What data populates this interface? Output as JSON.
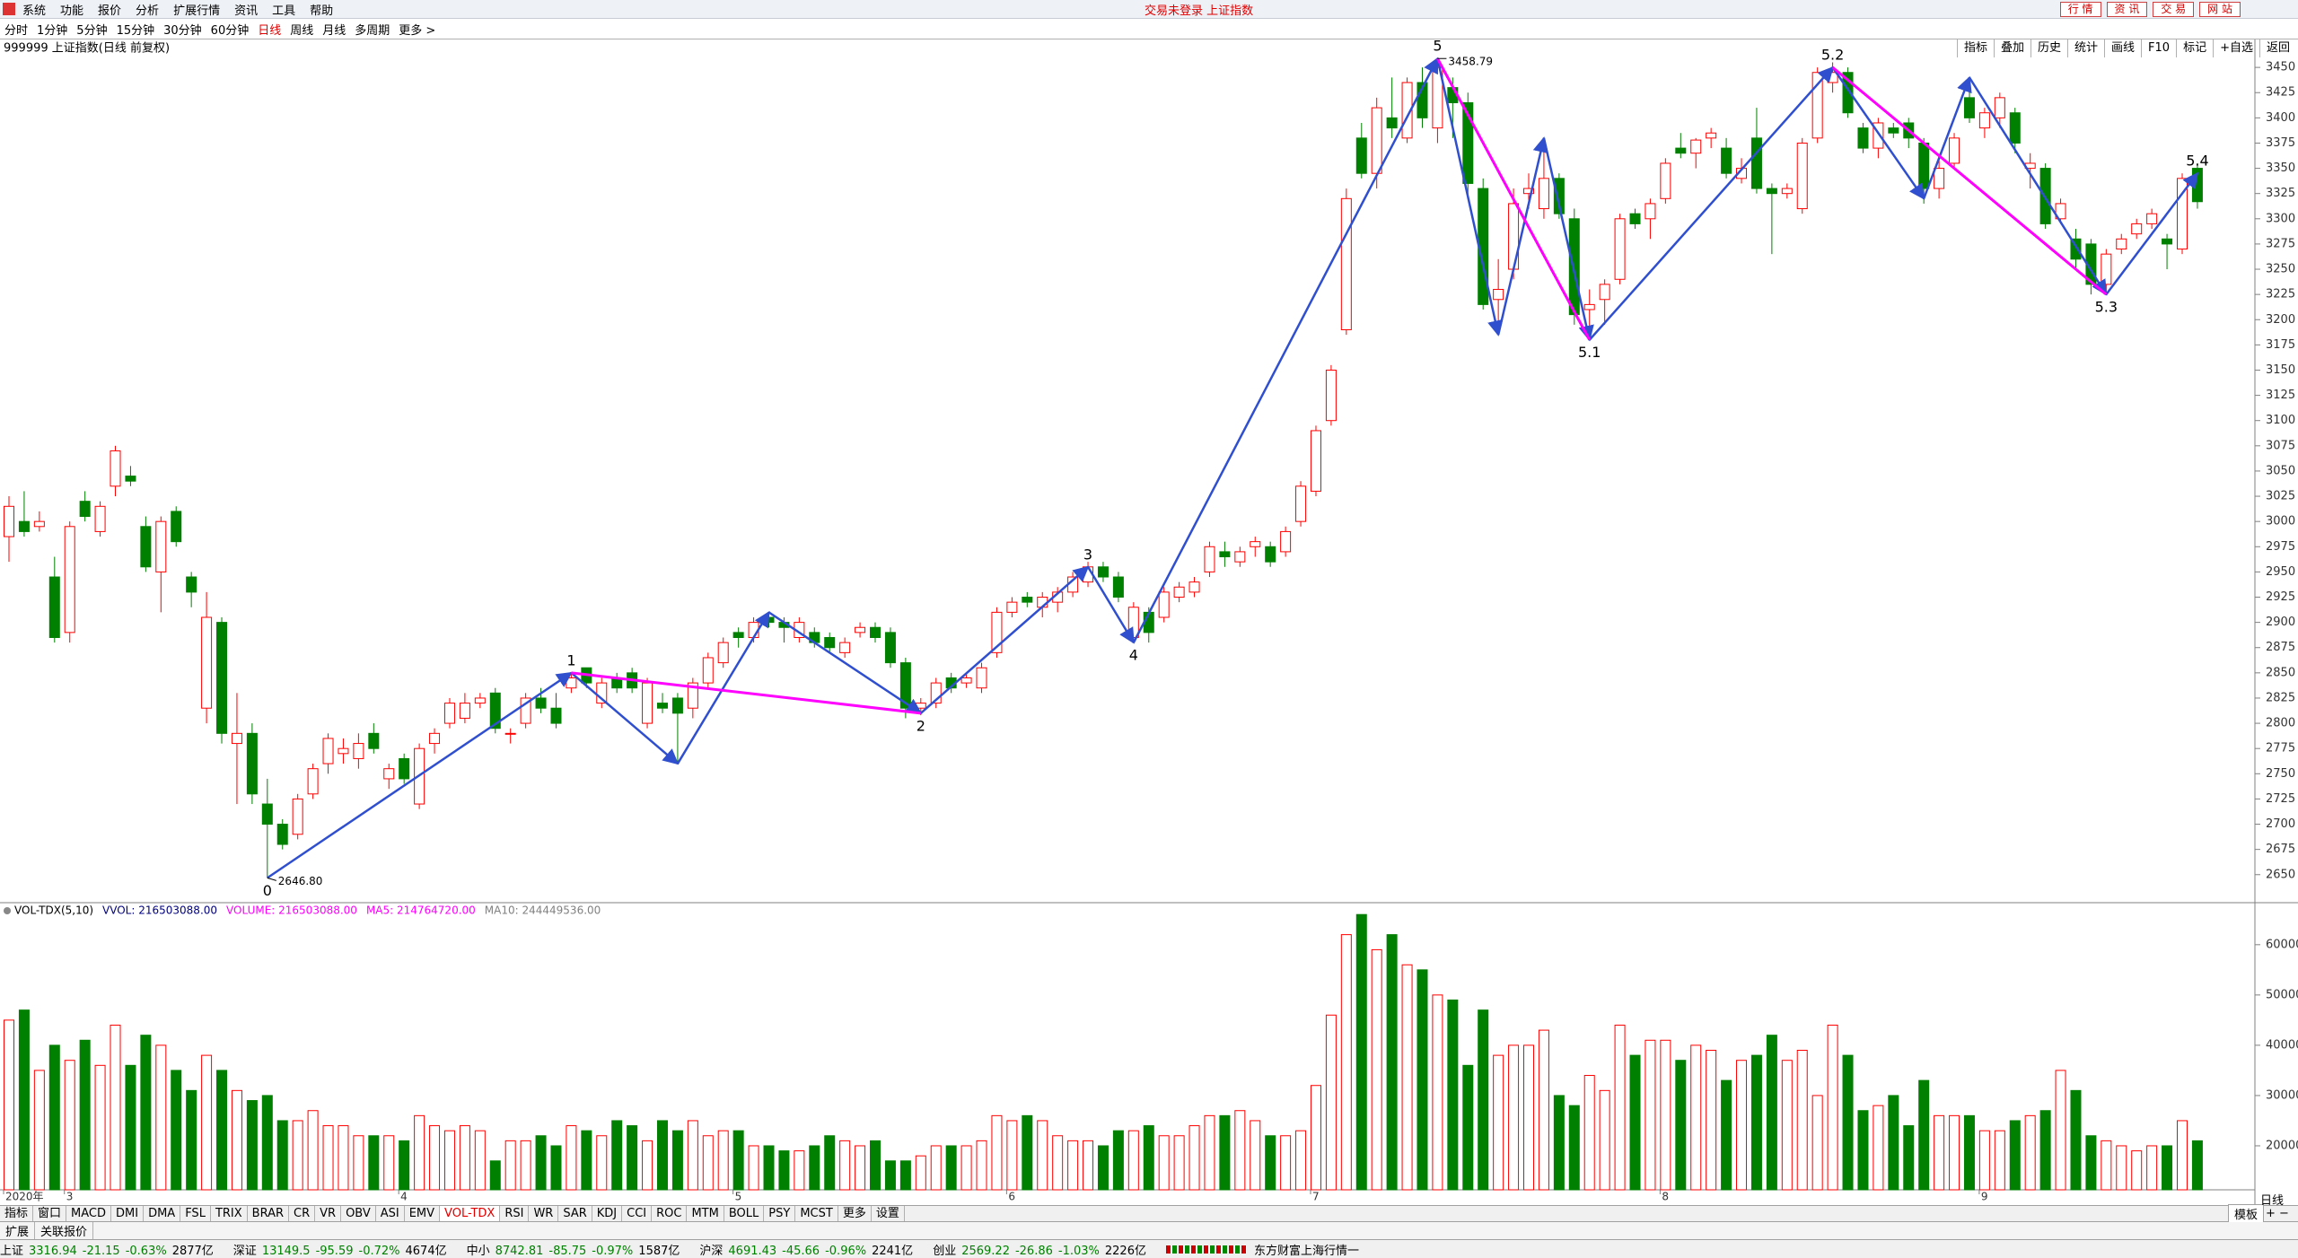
{
  "ui": {
    "menu": [
      "系统",
      "功能",
      "报价",
      "分析",
      "扩展行情",
      "资讯",
      "工具",
      "帮助"
    ],
    "title_center": "交易未登录  上证指数",
    "top_right_buttons": [
      "行 情",
      "资 讯",
      "交 易",
      "网 站"
    ],
    "periods": [
      "分时",
      "1分钟",
      "5分钟",
      "15分钟",
      "30分钟",
      "60分钟",
      "日线",
      "周线",
      "月线",
      "多周期",
      "更多 >"
    ],
    "active_period": "日线",
    "right_tools": [
      "指标",
      "叠加",
      "历史",
      "统计",
      "画线",
      "F10",
      "标记",
      "+自选",
      "返回"
    ],
    "indicator_tabs": [
      "指标",
      "窗口",
      "MACD",
      "DMI",
      "DMA",
      "FSL",
      "TRIX",
      "BRAR",
      "CR",
      "VR",
      "OBV",
      "ASI",
      "EMV",
      "VOL-TDX",
      "RSI",
      "WR",
      "SAR",
      "KDJ",
      "CCI",
      "ROC",
      "MTM",
      "BOLL",
      "PSY",
      "MCST",
      "更多",
      "设置"
    ],
    "active_indicator": "VOL-TDX",
    "template": "模板",
    "period_badge": "日线",
    "bottom_tabs": [
      "扩展",
      "关联报价"
    ],
    "status": [
      {
        "name": "上证",
        "price": "3316.94",
        "chg": "-21.15",
        "pct": "-0.63%",
        "amt": "2877亿"
      },
      {
        "name": "深证",
        "price": "13149.5",
        "chg": "-95.59",
        "pct": "-0.72%",
        "amt": "4674亿"
      },
      {
        "name": "中小",
        "price": "8742.81",
        "chg": "-85.75",
        "pct": "-0.97%",
        "amt": "1587亿"
      },
      {
        "name": "沪深",
        "price": "4691.43",
        "chg": "-45.66",
        "pct": "-0.96%",
        "amt": "2241亿"
      },
      {
        "name": "创业",
        "price": "2569.22",
        "chg": "-26.86",
        "pct": "-1.03%",
        "amt": "2226亿"
      }
    ],
    "broker": "东方财富上海行情一"
  },
  "chart_data": {
    "type": "candlestick",
    "title": "999999 上证指数(日线 前复权)",
    "categories": [
      "2020年",
      null,
      null,
      null,
      "3",
      null,
      null,
      null,
      null,
      null,
      null,
      null,
      null,
      null,
      null,
      null,
      null,
      null,
      null,
      null,
      null,
      null,
      null,
      null,
      null,
      null,
      "4",
      null,
      null,
      null,
      null,
      null,
      null,
      null,
      null,
      null,
      null,
      null,
      null,
      null,
      null,
      null,
      null,
      null,
      null,
      null,
      null,
      null,
      "5",
      null,
      null,
      null,
      null,
      null,
      null,
      null,
      null,
      null,
      null,
      null,
      null,
      null,
      null,
      null,
      null,
      null,
      "6",
      null,
      null,
      null,
      null,
      null,
      null,
      null,
      null,
      null,
      null,
      null,
      null,
      null,
      null,
      null,
      null,
      null,
      null,
      null,
      "7",
      null,
      null,
      null,
      null,
      null,
      null,
      null,
      null,
      null,
      null,
      null,
      null,
      null,
      null,
      null,
      null,
      null,
      null,
      null,
      null,
      null,
      null,
      "8",
      null,
      null,
      null,
      null,
      null,
      null,
      null,
      null,
      null,
      null,
      null,
      null,
      null,
      null,
      null,
      null,
      null,
      null,
      null,
      null,
      "9",
      null,
      null,
      null,
      null,
      null,
      null,
      null,
      null,
      null,
      null,
      null,
      null,
      null,
      null
    ],
    "ohlc": [
      [
        2985,
        3025,
        2960,
        3015
      ],
      [
        3000,
        3030,
        2985,
        2990
      ],
      [
        2995,
        3010,
        2990,
        3000
      ],
      [
        2945,
        2965,
        2880,
        2885
      ],
      [
        2890,
        3000,
        2880,
        2995
      ],
      [
        3020,
        3030,
        3000,
        3005
      ],
      [
        2990,
        3020,
        2985,
        3015
      ],
      [
        3035,
        3075,
        3025,
        3070
      ],
      [
        3045,
        3055,
        3035,
        3040
      ],
      [
        2995,
        3005,
        2950,
        2955
      ],
      [
        2950,
        3005,
        2910,
        3000
      ],
      [
        3010,
        3015,
        2975,
        2980
      ],
      [
        2945,
        2950,
        2915,
        2930
      ],
      [
        2815,
        2930,
        2800,
        2905
      ],
      [
        2900,
        2905,
        2780,
        2790
      ],
      [
        2780,
        2830,
        2720,
        2790
      ],
      [
        2790,
        2800,
        2720,
        2730
      ],
      [
        2720,
        2745,
        2646.8,
        2700
      ],
      [
        2700,
        2705,
        2675,
        2680
      ],
      [
        2690,
        2730,
        2685,
        2725
      ],
      [
        2730,
        2760,
        2725,
        2755
      ],
      [
        2760,
        2790,
        2750,
        2785
      ],
      [
        2770,
        2785,
        2760,
        2775
      ],
      [
        2765,
        2790,
        2755,
        2780
      ],
      [
        2790,
        2800,
        2770,
        2775
      ],
      [
        2745,
        2760,
        2735,
        2755
      ],
      [
        2765,
        2770,
        2740,
        2745
      ],
      [
        2720,
        2780,
        2715,
        2775
      ],
      [
        2780,
        2795,
        2770,
        2790
      ],
      [
        2800,
        2825,
        2795,
        2820
      ],
      [
        2805,
        2830,
        2800,
        2820
      ],
      [
        2820,
        2830,
        2815,
        2825
      ],
      [
        2830,
        2835,
        2790,
        2795
      ],
      [
        2790,
        2795,
        2780,
        2790
      ],
      [
        2800,
        2830,
        2795,
        2825
      ],
      [
        2825,
        2835,
        2810,
        2815
      ],
      [
        2815,
        2830,
        2795,
        2800
      ],
      [
        2835,
        2850,
        2830,
        2845
      ],
      [
        2855,
        2855,
        2835,
        2840
      ],
      [
        2820,
        2845,
        2815,
        2840
      ],
      [
        2845,
        2850,
        2830,
        2835
      ],
      [
        2850,
        2855,
        2830,
        2835
      ],
      [
        2800,
        2845,
        2795,
        2840
      ],
      [
        2820,
        2830,
        2810,
        2815
      ],
      [
        2825,
        2830,
        2760,
        2810
      ],
      [
        2815,
        2845,
        2805,
        2840
      ],
      [
        2840,
        2870,
        2835,
        2865
      ],
      [
        2860,
        2885,
        2855,
        2880
      ],
      [
        2890,
        2895,
        2875,
        2885
      ],
      [
        2885,
        2905,
        2880,
        2900
      ],
      [
        2905,
        2910,
        2895,
        2900
      ],
      [
        2900,
        2905,
        2880,
        2895
      ],
      [
        2885,
        2905,
        2880,
        2900
      ],
      [
        2890,
        2895,
        2875,
        2880
      ],
      [
        2885,
        2890,
        2870,
        2875
      ],
      [
        2870,
        2885,
        2865,
        2880
      ],
      [
        2890,
        2900,
        2885,
        2895
      ],
      [
        2895,
        2900,
        2880,
        2885
      ],
      [
        2890,
        2895,
        2855,
        2860
      ],
      [
        2860,
        2865,
        2805,
        2815
      ],
      [
        2815,
        2825,
        2808,
        2820
      ],
      [
        2820,
        2845,
        2815,
        2840
      ],
      [
        2845,
        2850,
        2830,
        2835
      ],
      [
        2840,
        2850,
        2835,
        2845
      ],
      [
        2835,
        2860,
        2830,
        2855
      ],
      [
        2870,
        2915,
        2865,
        2910
      ],
      [
        2910,
        2925,
        2905,
        2920
      ],
      [
        2925,
        2930,
        2915,
        2920
      ],
      [
        2915,
        2930,
        2905,
        2925
      ],
      [
        2920,
        2935,
        2910,
        2930
      ],
      [
        2930,
        2950,
        2925,
        2945
      ],
      [
        2940,
        2960,
        2935,
        2955
      ],
      [
        2955,
        2960,
        2940,
        2945
      ],
      [
        2945,
        2950,
        2920,
        2925
      ],
      [
        2885,
        2920,
        2880,
        2915
      ],
      [
        2910,
        2915,
        2880,
        2890
      ],
      [
        2905,
        2935,
        2900,
        2930
      ],
      [
        2925,
        2940,
        2920,
        2935
      ],
      [
        2930,
        2945,
        2925,
        2940
      ],
      [
        2950,
        2980,
        2945,
        2975
      ],
      [
        2970,
        2980,
        2955,
        2965
      ],
      [
        2960,
        2975,
        2955,
        2970
      ],
      [
        2975,
        2985,
        2965,
        2980
      ],
      [
        2975,
        2980,
        2955,
        2960
      ],
      [
        2970,
        2995,
        2965,
        2990
      ],
      [
        3000,
        3040,
        2995,
        3035
      ],
      [
        3030,
        3095,
        3025,
        3090
      ],
      [
        3100,
        3155,
        3095,
        3150
      ],
      [
        3190,
        3330,
        3185,
        3320
      ],
      [
        3380,
        3395,
        3340,
        3345
      ],
      [
        3345,
        3420,
        3330,
        3410
      ],
      [
        3400,
        3440,
        3380,
        3390
      ],
      [
        3380,
        3440,
        3375,
        3435
      ],
      [
        3435,
        3450,
        3390,
        3400
      ],
      [
        3390,
        3458.79,
        3375,
        3450
      ],
      [
        3430,
        3440,
        3380,
        3415
      ],
      [
        3415,
        3425,
        3320,
        3335
      ],
      [
        3330,
        3340,
        3210,
        3215
      ],
      [
        3220,
        3260,
        3185,
        3230
      ],
      [
        3250,
        3330,
        3240,
        3315
      ],
      [
        3325,
        3345,
        3310,
        3330
      ],
      [
        3310,
        3380,
        3300,
        3340
      ],
      [
        3340,
        3345,
        3300,
        3305
      ],
      [
        3300,
        3310,
        3195,
        3205
      ],
      [
        3210,
        3230,
        3180,
        3215
      ],
      [
        3220,
        3240,
        3195,
        3235
      ],
      [
        3240,
        3305,
        3235,
        3300
      ],
      [
        3305,
        3310,
        3290,
        3295
      ],
      [
        3300,
        3320,
        3280,
        3315
      ],
      [
        3320,
        3360,
        3315,
        3355
      ],
      [
        3370,
        3385,
        3360,
        3365
      ],
      [
        3365,
        3380,
        3350,
        3378
      ],
      [
        3380,
        3390,
        3370,
        3385
      ],
      [
        3370,
        3380,
        3340,
        3345
      ],
      [
        3340,
        3360,
        3335,
        3350
      ],
      [
        3380,
        3410,
        3325,
        3330
      ],
      [
        3330,
        3335,
        3265,
        3325
      ],
      [
        3325,
        3335,
        3320,
        3330
      ],
      [
        3310,
        3380,
        3305,
        3375
      ],
      [
        3380,
        3450,
        3375,
        3445
      ],
      [
        3435,
        3455,
        3425,
        3445
      ],
      [
        3445,
        3450,
        3400,
        3405
      ],
      [
        3390,
        3395,
        3365,
        3370
      ],
      [
        3370,
        3400,
        3360,
        3395
      ],
      [
        3390,
        3395,
        3380,
        3385
      ],
      [
        3395,
        3400,
        3370,
        3380
      ],
      [
        3375,
        3380,
        3315,
        3330
      ],
      [
        3330,
        3360,
        3320,
        3350
      ],
      [
        3355,
        3385,
        3350,
        3380
      ],
      [
        3420,
        3440,
        3395,
        3400
      ],
      [
        3390,
        3410,
        3380,
        3405
      ],
      [
        3400,
        3425,
        3390,
        3420
      ],
      [
        3405,
        3410,
        3365,
        3375
      ],
      [
        3350,
        3365,
        3330,
        3355
      ],
      [
        3350,
        3355,
        3290,
        3295
      ],
      [
        3300,
        3320,
        3295,
        3315
      ],
      [
        3280,
        3290,
        3250,
        3260
      ],
      [
        3275,
        3280,
        3225,
        3235
      ],
      [
        3235,
        3270,
        3225,
        3265
      ],
      [
        3270,
        3285,
        3265,
        3280
      ],
      [
        3285,
        3300,
        3280,
        3295
      ],
      [
        3295,
        3310,
        3290,
        3305
      ],
      [
        3280,
        3285,
        3250,
        3275
      ],
      [
        3270,
        3345,
        3265,
        3340
      ],
      [
        3350,
        3355,
        3310,
        3316.94
      ]
    ],
    "up_color": "#ff0000",
    "down_color": "#008000",
    "ylim": [
      2624,
      3459
    ],
    "yticks": [
      2650,
      2675,
      2700,
      2725,
      2750,
      2775,
      2800,
      2825,
      2850,
      2875,
      2900,
      2925,
      2950,
      2975,
      3000,
      3025,
      3050,
      3075,
      3100,
      3125,
      3150,
      3175,
      3200,
      3225,
      3250,
      3275,
      3300,
      3325,
      3350,
      3375,
      3400,
      3425,
      3450
    ],
    "extremes": [
      {
        "index": 17,
        "value": 2646.8,
        "label": "2646.80"
      },
      {
        "index": 94,
        "value": 3458.79,
        "label": "3458.79"
      }
    ],
    "waves": [
      {
        "label": "0",
        "index": 17,
        "price": 2646.8
      },
      {
        "label": "1",
        "index": 37,
        "price": 2850
      },
      {
        "label": "2",
        "index": 60,
        "price": 2810
      },
      {
        "label": "3",
        "index": 71,
        "price": 2955
      },
      {
        "label": "4",
        "index": 74,
        "price": 2880
      },
      {
        "label": "5",
        "index": 94,
        "price": 3458.79
      },
      {
        "label": "5.1",
        "index": 104,
        "price": 3180
      },
      {
        "label": "5.2",
        "index": 120,
        "price": 3450
      },
      {
        "label": "5.3",
        "index": 138,
        "price": 3225
      },
      {
        "label": "5.4",
        "index": 144,
        "price": 3345
      }
    ],
    "zigzag": {
      "color": "#2f4fcf",
      "points": [
        {
          "index": 17,
          "price": 2646.8
        },
        {
          "index": 37,
          "price": 2850
        },
        {
          "index": 44,
          "price": 2760
        },
        {
          "index": 50,
          "price": 2910
        },
        {
          "index": 60,
          "price": 2810
        },
        {
          "index": 71,
          "price": 2955
        },
        {
          "index": 74,
          "price": 2880
        },
        {
          "index": 94,
          "price": 3458.79
        },
        {
          "index": 98,
          "price": 3185
        },
        {
          "index": 101,
          "price": 3380
        },
        {
          "index": 104,
          "price": 3180
        },
        {
          "index": 120,
          "price": 3450
        },
        {
          "index": 126,
          "price": 3320
        },
        {
          "index": 129,
          "price": 3440
        },
        {
          "index": 138,
          "price": 3225
        },
        {
          "index": 144,
          "price": 3345
        }
      ]
    },
    "trend_lines": {
      "color": "#ff00ff",
      "from": [
        "1",
        "5",
        "5.2"
      ],
      "to": [
        "2",
        "5.1",
        "5.3"
      ]
    },
    "volume": {
      "type": "bar",
      "legend": [
        {
          "text": "VOL-TDX(5,10)",
          "color": "#000000"
        },
        {
          "text": "VVOL: 216503088.00",
          "color": "#000080"
        },
        {
          "text": "VOLUME: 216503088.00",
          "color": "#ff00ff"
        },
        {
          "text": "MA5: 214764720.00",
          "color": "#ff00ff"
        },
        {
          "text": "MA10: 244449536.00",
          "color": "#808080"
        }
      ],
      "values": [
        45000,
        47000,
        35000,
        40000,
        37000,
        41000,
        36000,
        44000,
        36000,
        42000,
        40000,
        35000,
        31000,
        38000,
        35000,
        31000,
        29000,
        30000,
        25000,
        25000,
        27000,
        24000,
        24000,
        22000,
        22000,
        22000,
        21000,
        26000,
        24000,
        23000,
        24000,
        23000,
        17000,
        21000,
        21000,
        22000,
        20000,
        24000,
        23000,
        22000,
        25000,
        24000,
        21000,
        25000,
        23000,
        25000,
        22000,
        23000,
        23000,
        20000,
        20000,
        19000,
        19000,
        20000,
        22000,
        21000,
        20000,
        21000,
        17000,
        17000,
        18000,
        20000,
        20000,
        20000,
        21000,
        26000,
        25000,
        26000,
        25000,
        22000,
        21000,
        21000,
        20000,
        23000,
        23000,
        24000,
        22000,
        22000,
        24000,
        26000,
        26000,
        27000,
        25000,
        22000,
        22000,
        23000,
        32000,
        46000,
        62000,
        66000,
        59000,
        62000,
        56000,
        55000,
        50000,
        49000,
        36000,
        47000,
        38000,
        40000,
        40000,
        43000,
        30000,
        28000,
        34000,
        31000,
        44000,
        38000,
        41000,
        41000,
        37000,
        40000,
        39000,
        33000,
        37000,
        38000,
        42000,
        37000,
        39000,
        30000,
        44000,
        38000,
        27000,
        28000,
        30000,
        24000,
        33000,
        26000,
        26000,
        26000,
        23000,
        23000,
        25000,
        26000,
        27000,
        35000,
        31000,
        22000,
        21000,
        20000,
        19000,
        20000,
        20000,
        25000,
        21000
      ],
      "ylim": [
        11250,
        68000
      ],
      "yticks": [
        20000,
        30000,
        40000,
        50000,
        60000
      ]
    }
  }
}
